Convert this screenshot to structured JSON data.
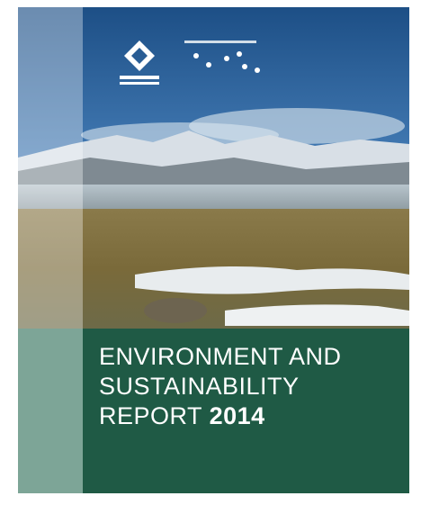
{
  "cover": {
    "title_line1": "ENVIRONMENT AND",
    "title_line2": "SUSTAINABILITY",
    "title_line3": "REPORT",
    "year": "2014"
  }
}
